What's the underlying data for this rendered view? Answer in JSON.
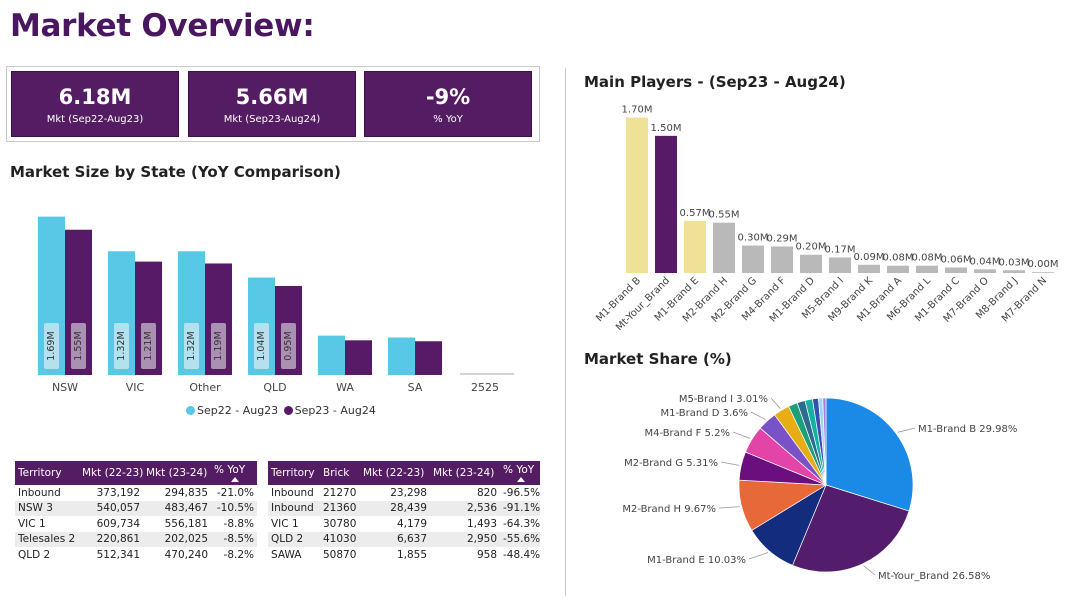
{
  "page_title": "Market Overview:",
  "kpis": [
    {
      "value": "6.18M",
      "label": "Mkt (Sep22-Aug23)"
    },
    {
      "value": "5.66M",
      "label": "Mkt (Sep23-Aug24)"
    },
    {
      "value": "-9%",
      "label": "% YoY"
    }
  ],
  "colors": {
    "series1": "#57c8e6",
    "series2": "#561a66",
    "highlight": "#efe196",
    "grey": "#b9b9b9",
    "header": "#541c62"
  },
  "chart_data": [
    {
      "type": "bar",
      "title": "Market Size by State (YoY Comparison)",
      "categories": [
        "NSW",
        "VIC",
        "Other",
        "QLD",
        "WA",
        "SA",
        "2525"
      ],
      "series": [
        {
          "name": "Sep22 - Aug23",
          "values": [
            1.69,
            1.32,
            1.32,
            1.04,
            0.42,
            0.4,
            0.0
          ],
          "labels": [
            "1.69M",
            "1.32M",
            "1.32M",
            "1.04M",
            "",
            "",
            ""
          ]
        },
        {
          "name": "Sep23 - Aug24",
          "values": [
            1.55,
            1.21,
            1.19,
            0.95,
            0.37,
            0.36,
            0.0
          ],
          "labels": [
            "1.55M",
            "1.21M",
            "1.19M",
            "0.95M",
            "",
            "",
            ""
          ]
        }
      ],
      "ylim": [
        0,
        1.75
      ],
      "legend": "bottom"
    },
    {
      "type": "bar",
      "title": "Main Players - (Sep23 - Aug24)",
      "categories": [
        "M1-Brand B",
        "Mt-Your_Brand",
        "M1-Brand E",
        "M2-Brand H",
        "M2-Brand G",
        "M4-Brand F",
        "M1-Brand D",
        "M5-Brand I",
        "M9-Brand K",
        "M1-Brand A",
        "M6-Brand L",
        "M1-Brand C",
        "M7-Brand O",
        "M8-Brand J",
        "M7-Brand N"
      ],
      "values": [
        1.7,
        1.5,
        0.57,
        0.55,
        0.3,
        0.29,
        0.2,
        0.17,
        0.09,
        0.08,
        0.08,
        0.06,
        0.04,
        0.03,
        0.0
      ],
      "labels": [
        "1.70M",
        "1.50M",
        "0.57M",
        "0.55M",
        "0.30M",
        "0.29M",
        "0.20M",
        "0.17M",
        "0.09M",
        "0.08M",
        "0.08M",
        "0.06M",
        "0.04M",
        "0.03M",
        "0.00M"
      ],
      "bar_colors": [
        "highlight",
        "series2",
        "highlight",
        "grey",
        "grey",
        "grey",
        "grey",
        "grey",
        "grey",
        "grey",
        "grey",
        "grey",
        "grey",
        "grey",
        "grey"
      ],
      "ylim": [
        0,
        1.75
      ]
    },
    {
      "type": "pie",
      "title": "Market Share (%)",
      "slices": [
        {
          "name": "M1-Brand B",
          "value": 29.98,
          "label": "M1-Brand B 29.98%",
          "color": "#1b8ae6"
        },
        {
          "name": "Mt-Your_Brand",
          "value": 26.58,
          "label": "Mt-Your_Brand 26.58%",
          "color": "#541c6c"
        },
        {
          "name": "M1-Brand E",
          "value": 10.03,
          "label": "M1-Brand E 10.03%",
          "color": "#132c7e"
        },
        {
          "name": "M2-Brand H",
          "value": 9.67,
          "label": "M2-Brand H 9.67%",
          "color": "#e7693a"
        },
        {
          "name": "M2-Brand G",
          "value": 5.31,
          "label": "M2-Brand G 5.31%",
          "color": "#6c0f7e"
        },
        {
          "name": "M4-Brand F",
          "value": 5.2,
          "label": "M4-Brand F 5.2%",
          "color": "#e244a8"
        },
        {
          "name": "M1-Brand D",
          "value": 3.6,
          "label": "M1-Brand D 3.6%",
          "color": "#7a52c7"
        },
        {
          "name": "M5-Brand I",
          "value": 3.01,
          "label": "M5-Brand I 3.01%",
          "color": "#e6ad14"
        },
        {
          "name": "M9-Brand K",
          "value": 1.7,
          "label": "",
          "color": "#1f9e7a"
        },
        {
          "name": "M1-Brand A",
          "value": 1.5,
          "label": "",
          "color": "#2e6b8f"
        },
        {
          "name": "M6-Brand L",
          "value": 1.4,
          "label": "",
          "color": "#10b3a0"
        },
        {
          "name": "M1-Brand C",
          "value": 1.1,
          "label": "",
          "color": "#3a4db3"
        },
        {
          "name": "M7-Brand O",
          "value": 0.8,
          "label": "",
          "color": "#9dd8f0"
        },
        {
          "name": "M8-Brand J",
          "value": 0.6,
          "label": "",
          "color": "#b07ad6"
        }
      ]
    }
  ],
  "table1": {
    "headers": [
      "Territory",
      "Mkt (22-23)",
      "Mkt (23-24)",
      "% YoY"
    ],
    "rows": [
      [
        "Inbound",
        "373,192",
        "294,835",
        "-21.0%"
      ],
      [
        "NSW 3",
        "540,057",
        "483,467",
        "-10.5%"
      ],
      [
        "VIC 1",
        "609,734",
        "556,181",
        "-8.8%"
      ],
      [
        "Telesales 2",
        "220,861",
        "202,025",
        "-8.5%"
      ],
      [
        "QLD 2",
        "512,341",
        "470,240",
        "-8.2%"
      ]
    ]
  },
  "table2": {
    "headers": [
      "Territory",
      "Brick",
      "Mkt (22-23)",
      "Mkt (23-24)",
      "% YoY"
    ],
    "rows": [
      [
        "Inbound",
        "21270",
        "23,298",
        "820",
        "-96.5%"
      ],
      [
        "Inbound",
        "21360",
        "28,439",
        "2,536",
        "-91.1%"
      ],
      [
        "VIC 1",
        "30780",
        "4,179",
        "1,493",
        "-64.3%"
      ],
      [
        "QLD 2",
        "41030",
        "6,637",
        "2,950",
        "-55.6%"
      ],
      [
        "SAWA",
        "50870",
        "1,855",
        "958",
        "-48.4%"
      ]
    ]
  }
}
